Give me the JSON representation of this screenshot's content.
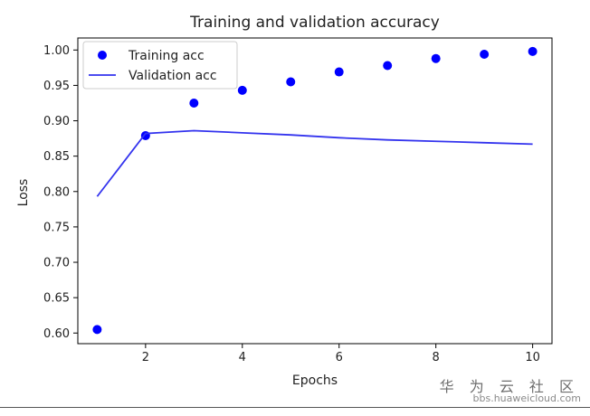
{
  "chart_data": {
    "type": "scatter",
    "title": "Training and validation accuracy",
    "xlabel": "Epochs",
    "ylabel": "Loss",
    "xlim": [
      0.6,
      10.4
    ],
    "ylim": [
      0.585,
      1.017
    ],
    "xticks": [
      2,
      4,
      6,
      8,
      10
    ],
    "yticks": [
      0.6,
      0.65,
      0.7,
      0.75,
      0.8,
      0.85,
      0.9,
      0.95,
      1.0
    ],
    "grid": false,
    "legend_position": "top-left",
    "series": [
      {
        "name": "Training acc",
        "kind": "points",
        "color": "#0000ff",
        "x": [
          1,
          2,
          3,
          4,
          5,
          6,
          7,
          8,
          9,
          10
        ],
        "y": [
          0.605,
          0.879,
          0.925,
          0.943,
          0.955,
          0.969,
          0.978,
          0.988,
          0.994,
          0.998
        ]
      },
      {
        "name": "Validation acc",
        "kind": "line",
        "color": "#3333ee",
        "x": [
          1,
          2,
          3,
          4,
          5,
          6,
          7,
          8,
          9,
          10
        ],
        "y": [
          0.793,
          0.882,
          0.886,
          0.883,
          0.88,
          0.876,
          0.873,
          0.871,
          0.869,
          0.867
        ]
      }
    ]
  },
  "watermark": {
    "name": "华 为 云 社 区",
    "url": "bbs.huaweicloud.com"
  }
}
